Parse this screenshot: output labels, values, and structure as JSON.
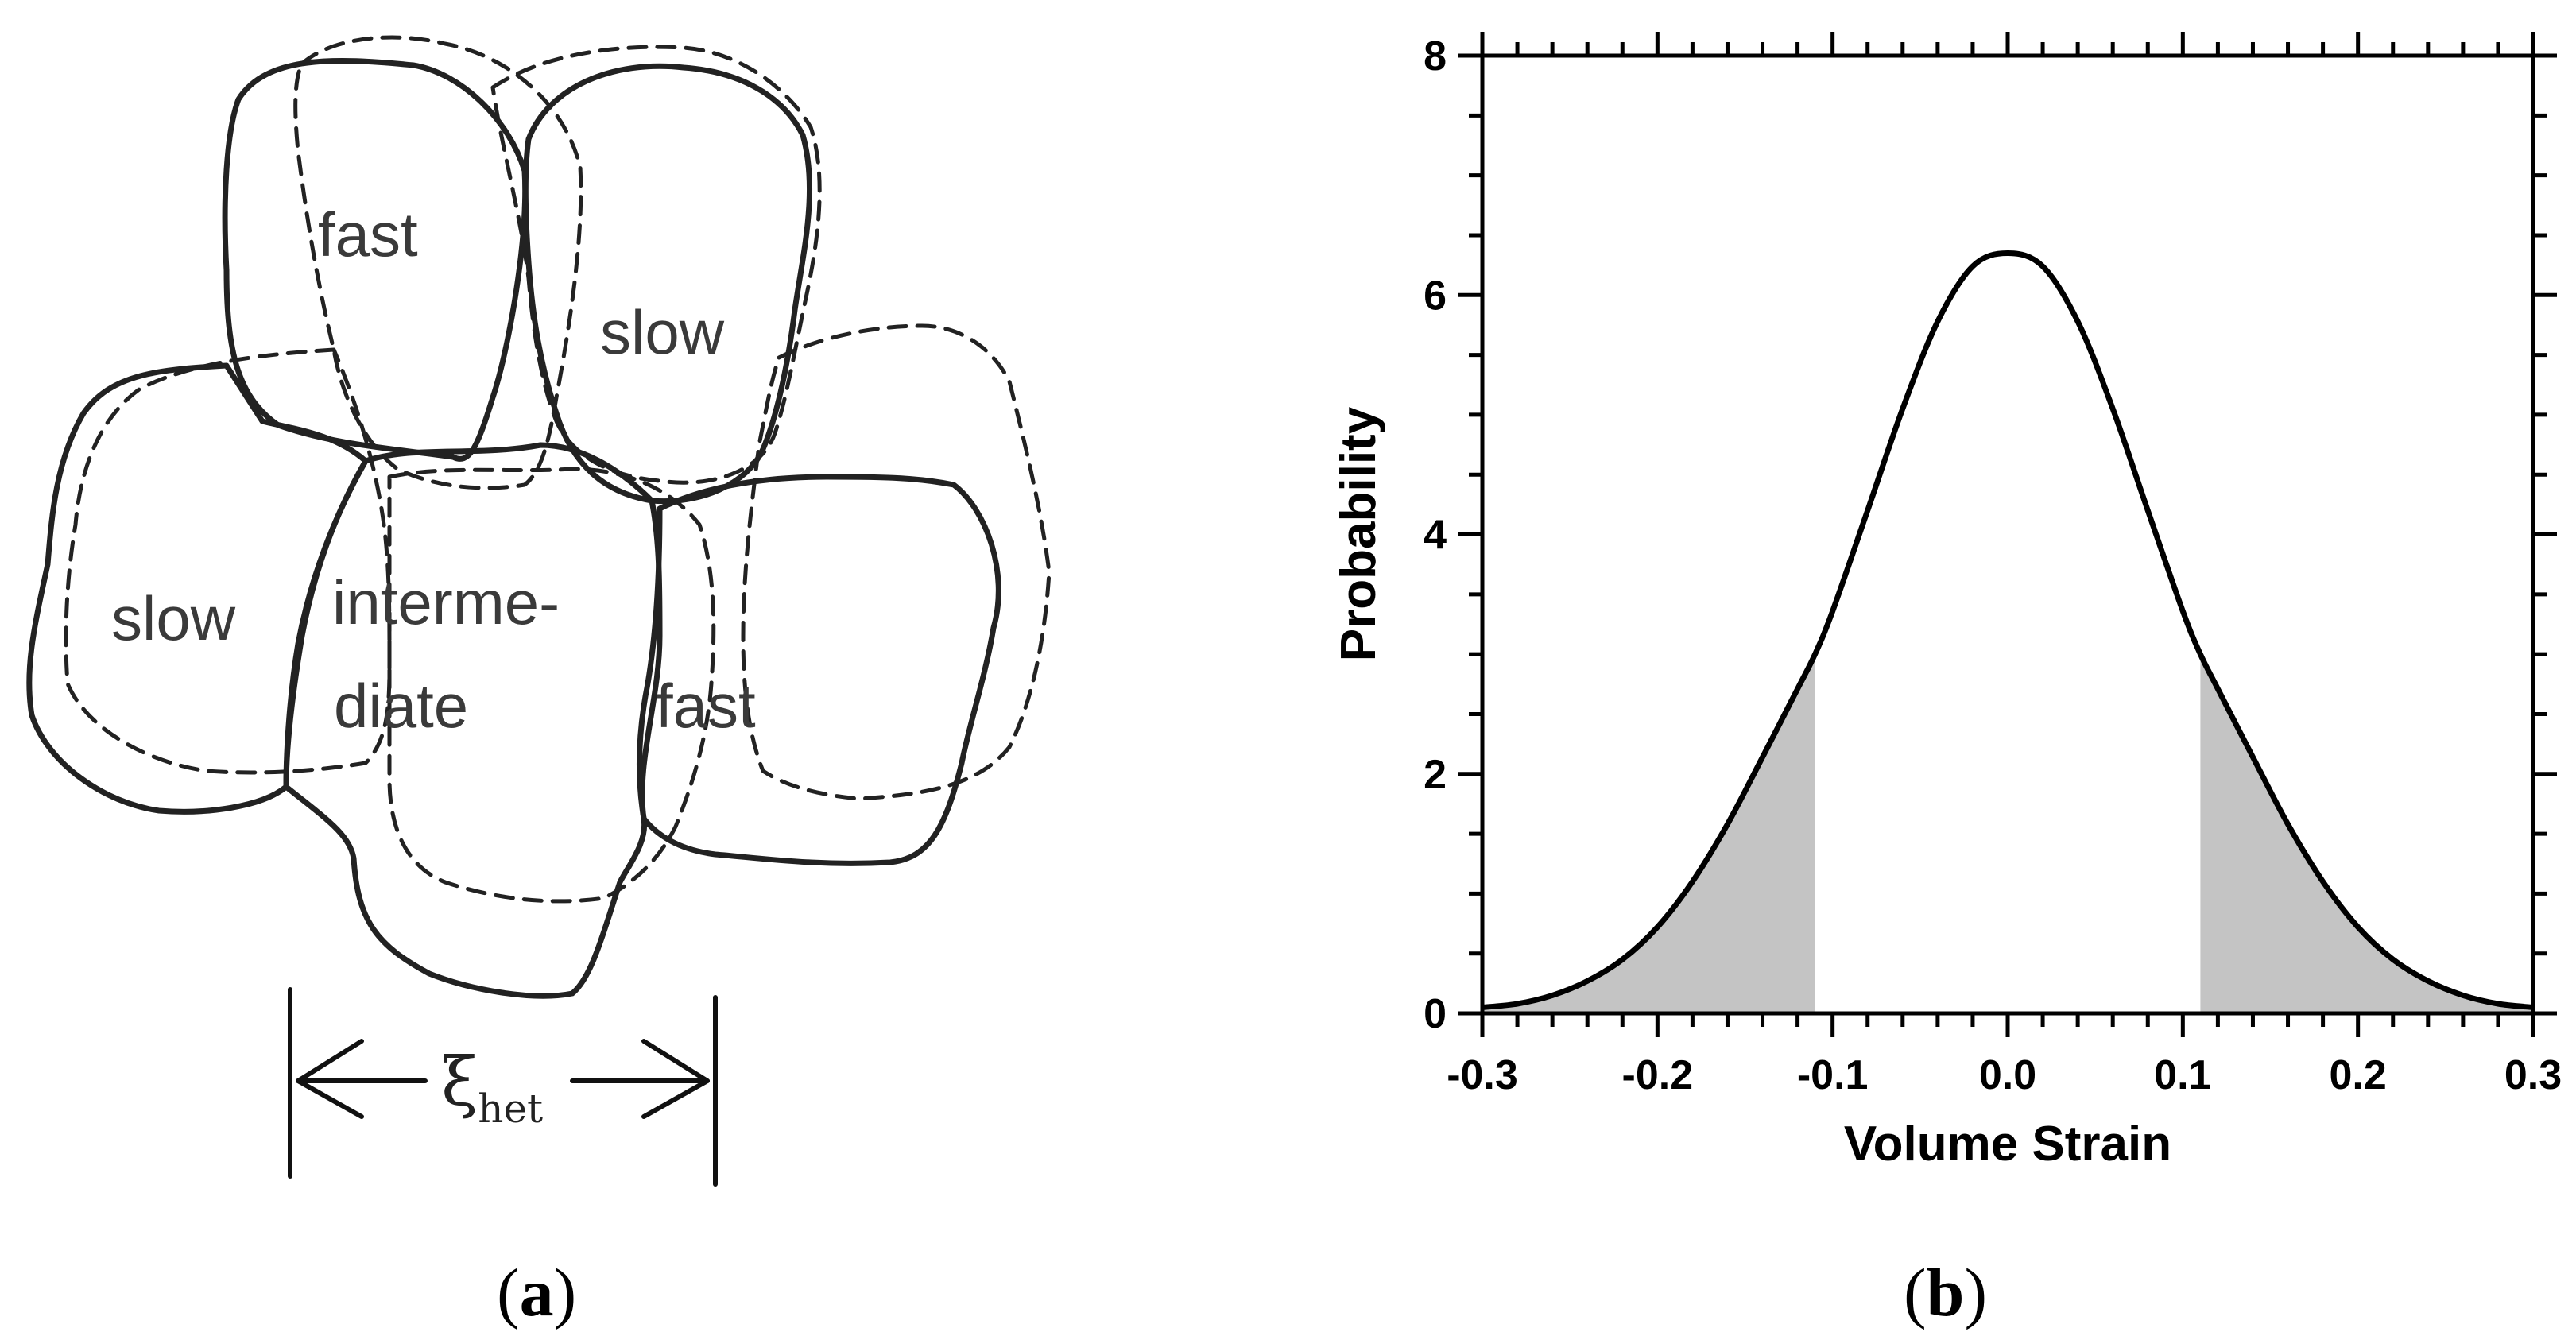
{
  "panel_a": {
    "label_open": "(",
    "label_letter": "a",
    "label_close": ")",
    "regions": [
      "fast",
      "slow",
      "slow",
      "interme-",
      "diate",
      "fast"
    ],
    "length_scale_symbol": "ξ",
    "length_scale_subscript": "het"
  },
  "panel_b": {
    "label_open": "(",
    "label_letter": "b",
    "label_close": ")"
  },
  "chart_data": {
    "type": "area",
    "title": "",
    "xlabel": "Volume Strain",
    "ylabel": "Probability",
    "xlim": [
      -0.3,
      0.3
    ],
    "ylim": [
      0,
      8
    ],
    "x_ticks": [
      "-0.3",
      "-0.2",
      "-0.1",
      "0.0",
      "0.1",
      "0.2",
      "0.3"
    ],
    "y_ticks": [
      "0",
      "2",
      "4",
      "6",
      "8"
    ],
    "x_tick_values": [
      -0.3,
      -0.2,
      -0.1,
      0.0,
      0.1,
      0.2,
      0.3
    ],
    "y_tick_values": [
      0,
      2,
      4,
      6,
      8
    ],
    "grid": false,
    "curve_color": "#000000",
    "shade_color": "#c4c4c4",
    "series": [
      {
        "x": [
          -0.3,
          -0.28,
          -0.26,
          -0.24,
          -0.22,
          -0.2,
          -0.18,
          -0.16,
          -0.14,
          -0.12,
          -0.11,
          -0.1,
          -0.08,
          -0.06,
          -0.04,
          -0.02,
          0.0,
          0.02,
          0.04,
          0.06,
          0.08,
          0.1,
          0.11,
          0.12,
          0.14,
          0.16,
          0.18,
          0.2,
          0.22,
          0.24,
          0.26,
          0.28,
          0.3
        ],
        "y": [
          0.05,
          0.08,
          0.15,
          0.27,
          0.45,
          0.72,
          1.1,
          1.58,
          2.14,
          2.71,
          3.0,
          3.36,
          4.2,
          5.05,
          5.78,
          6.24,
          6.35,
          6.24,
          5.78,
          5.05,
          4.2,
          3.36,
          3.0,
          2.71,
          2.14,
          1.58,
          1.1,
          0.72,
          0.45,
          0.27,
          0.15,
          0.08,
          0.05
        ]
      }
    ],
    "shaded_regions": [
      [
        -0.3,
        -0.11
      ],
      [
        0.11,
        0.3
      ]
    ]
  }
}
